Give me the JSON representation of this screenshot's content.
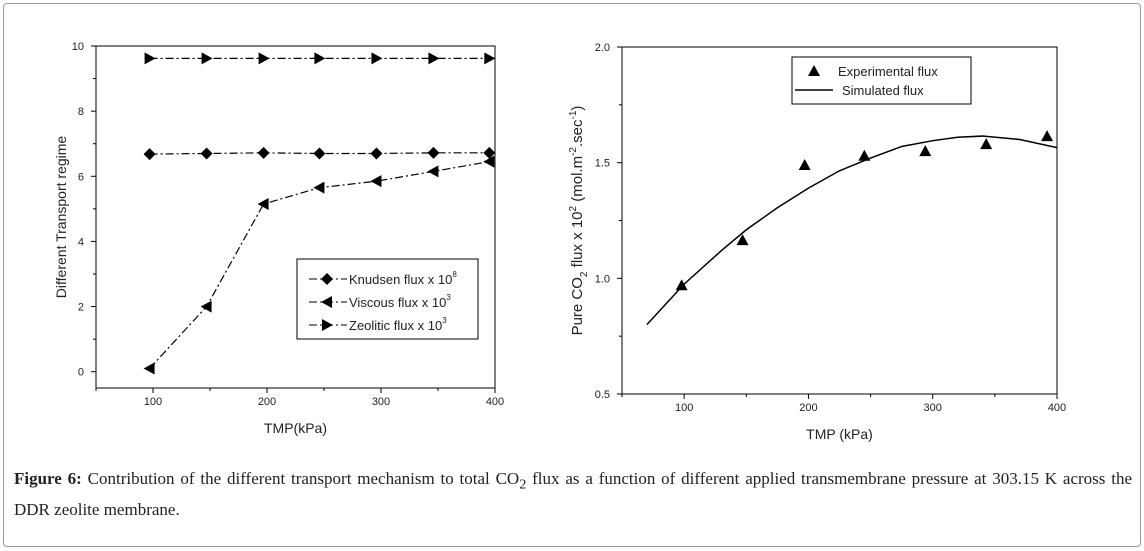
{
  "chart_data": [
    {
      "type": "line",
      "ylabel": "Different Transport regime",
      "xlabel": "TMP(kPa)",
      "xlim": [
        50,
        400
      ],
      "ylim": [
        -0.5,
        10
      ],
      "xticks": [
        "100",
        "200",
        "300",
        "400"
      ],
      "yticks": [
        "0",
        "2",
        "4",
        "6",
        "8",
        "10"
      ],
      "legend_position": "center-right",
      "series": [
        {
          "name": "Knudsen flux x 10",
          "sup": "8",
          "marker": "diamond",
          "x": [
            97,
            147,
            197,
            246,
            296,
            346,
            395
          ],
          "y": [
            6.68,
            6.7,
            6.72,
            6.7,
            6.7,
            6.72,
            6.72
          ]
        },
        {
          "name": "Viscous flux x 10",
          "sup": "3",
          "marker": "triangle-left",
          "x": [
            97,
            147,
            197,
            246,
            296,
            346,
            395
          ],
          "y": [
            0.1,
            2.0,
            5.15,
            5.65,
            5.85,
            6.15,
            6.45
          ]
        },
        {
          "name": "Zeolitic flux x 10",
          "sup": "3",
          "marker": "triangle-right",
          "x": [
            97,
            147,
            197,
            246,
            296,
            346,
            395
          ],
          "y": [
            9.62,
            9.62,
            9.62,
            9.62,
            9.62,
            9.62,
            9.62
          ]
        }
      ]
    },
    {
      "type": "line",
      "ylabel_parts": [
        "Pure CO",
        "2",
        " flux x 10",
        "2",
        " (mol.m",
        "-2",
        ".sec",
        "-1",
        ")"
      ],
      "xlabel": "TMP (kPa)",
      "xlim": [
        50,
        400
      ],
      "ylim": [
        0.5,
        2.0
      ],
      "xticks": [
        "100",
        "200",
        "300",
        "400"
      ],
      "yticks": [
        "0.5",
        "1.0",
        "1.5",
        "2.0"
      ],
      "legend_position": "top-right",
      "series": [
        {
          "name": "Experimental flux",
          "marker": "triangle-up",
          "x": [
            98,
            147,
            197,
            245,
            294,
            343,
            392
          ],
          "y": [
            0.97,
            1.165,
            1.49,
            1.53,
            1.55,
            1.58,
            1.615
          ]
        },
        {
          "name": "Simulated flux",
          "marker": "none",
          "x": [
            70,
            100,
            130,
            150,
            175,
            200,
            225,
            250,
            275,
            300,
            320,
            340,
            370,
            400
          ],
          "y": [
            0.8,
            0.975,
            1.12,
            1.21,
            1.305,
            1.39,
            1.465,
            1.52,
            1.57,
            1.595,
            1.61,
            1.615,
            1.6,
            1.565
          ]
        }
      ]
    }
  ],
  "caption": {
    "label": "Figure 6:",
    "text_a": " Contribution of the different transport mechanism to total CO",
    "sub": "2",
    "text_b": " flux as a function of different applied transmembrane pressure at 303.15 K across the DDR zeolite membrane."
  }
}
